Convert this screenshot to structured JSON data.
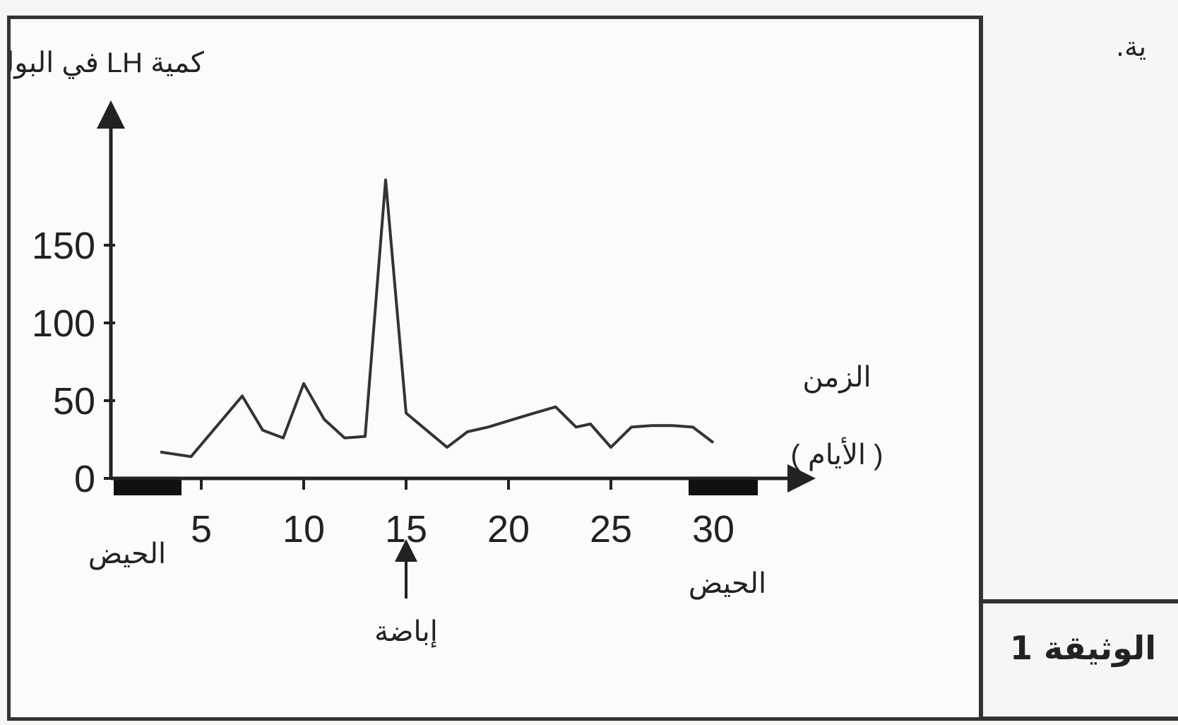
{
  "document": {
    "label": "الوثيقة 1",
    "fragment_text": "ية."
  },
  "chart_data": {
    "type": "line",
    "ylabel": "كمية LH في البول",
    "xlabel_line1": "الزمن",
    "xlabel_line2": "( الأيام )",
    "x_ticks": [
      5,
      10,
      15,
      20,
      25,
      30
    ],
    "y_ticks": [
      0,
      50,
      100,
      150
    ],
    "xlim": [
      0,
      33
    ],
    "ylim": [
      0,
      200
    ],
    "series": [
      {
        "x": [
          3,
          4.5,
          7,
          8,
          9,
          10,
          11,
          12,
          13,
          14,
          15,
          16,
          17,
          18,
          19,
          20,
          21,
          22.3,
          23.3,
          24,
          25,
          26,
          27,
          28,
          29,
          30
        ],
        "y": [
          17,
          14,
          53,
          31,
          26,
          61,
          38,
          26,
          27,
          192,
          42,
          31,
          20,
          30,
          33,
          37,
          41,
          46,
          33,
          35,
          20,
          33,
          34,
          34,
          33,
          23
        ]
      }
    ],
    "annotations": {
      "ovulation_label": "إباضة",
      "ovulation_day": 15,
      "menstruation_label": "الحيض",
      "menstruation_periods": [
        [
          0,
          3.8
        ],
        [
          28.5,
          32.3
        ]
      ]
    }
  }
}
